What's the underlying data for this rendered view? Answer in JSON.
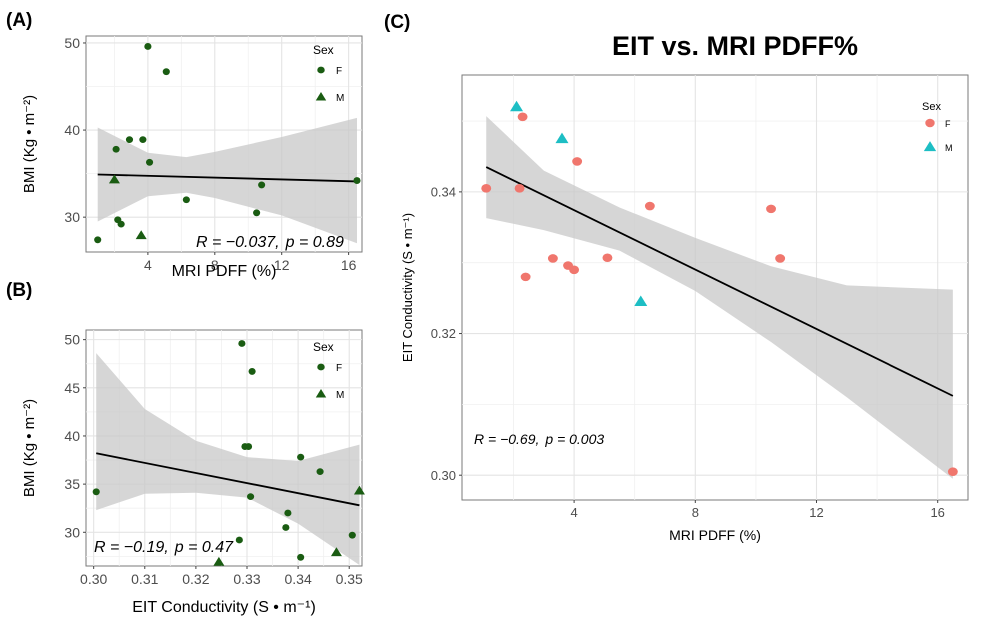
{
  "figure": {
    "panel_labels": {
      "a": "(A)",
      "b": "(B)",
      "c": "(C)"
    }
  },
  "colors": {
    "female_dark": "#1a5c12",
    "female_salmon": "#f0766d",
    "male_teal": "#1dbec4",
    "band": "#c8c8c8",
    "panel_bg": "#ffffff",
    "grid": "#e4e4e4",
    "fit": "#000000"
  },
  "chart_data": [
    {
      "id": "A",
      "type": "scatter",
      "title": "",
      "xlabel": "MRI PDFF (%)",
      "ylabel": "BMI (Kg • m⁻²)",
      "xlim": [
        0.3,
        16.8
      ],
      "ylim": [
        26.0,
        50.8
      ],
      "xticks": [
        4,
        8,
        12,
        16
      ],
      "yticks": [
        30,
        40,
        50
      ],
      "grid": true,
      "legend": {
        "title": "Sex",
        "position": "top-right",
        "entries": [
          "F",
          "M"
        ]
      },
      "annotation": {
        "r": "R = −0.037,",
        "p": "p = 0.89"
      },
      "series": [
        {
          "name": "F",
          "marker": "circle",
          "points": [
            [
              1.0,
              27.4
            ],
            [
              2.1,
              37.8
            ],
            [
              2.2,
              29.7
            ],
            [
              2.4,
              29.2
            ],
            [
              2.9,
              38.9
            ],
            [
              3.7,
              38.9
            ],
            [
              4.0,
              49.6
            ],
            [
              4.1,
              36.3
            ],
            [
              5.1,
              46.7
            ],
            [
              6.3,
              32.0
            ],
            [
              10.5,
              30.5
            ],
            [
              10.8,
              33.7
            ],
            [
              16.5,
              34.2
            ]
          ]
        },
        {
          "name": "M",
          "marker": "triangle",
          "points": [
            [
              2.0,
              34.3
            ],
            [
              3.6,
              27.9
            ]
          ]
        }
      ],
      "fit": {
        "x": [
          1.0,
          16.5
        ],
        "y": [
          34.9,
          34.1
        ]
      },
      "band": {
        "x": [
          1.0,
          4.0,
          6.3,
          8.0,
          12.0,
          16.5
        ],
        "lower": [
          29.5,
          32.4,
          32.8,
          32.2,
          30.2,
          27.0
        ],
        "upper": [
          40.3,
          37.4,
          36.9,
          37.5,
          39.2,
          41.4
        ]
      }
    },
    {
      "id": "B",
      "type": "scatter",
      "title": "",
      "xlabel": "EIT Conductivity (S • m⁻¹)",
      "ylabel": "BMI (Kg • m⁻²)",
      "xlim": [
        0.2985,
        0.3525
      ],
      "ylim": [
        26.5,
        51.0
      ],
      "xticks": [
        0.3,
        0.31,
        0.32,
        0.33,
        0.34,
        0.35
      ],
      "xtick_labels": [
        "0.30",
        "0.31",
        "0.32",
        "0.33",
        "0.34",
        "0.35"
      ],
      "yticks": [
        30,
        35,
        40,
        45,
        50
      ],
      "grid": true,
      "legend": {
        "title": "Sex",
        "position": "top-right",
        "entries": [
          "F",
          "M"
        ]
      },
      "annotation": {
        "r": "R = −0.19,",
        "p": "p = 0.47"
      },
      "series": [
        {
          "name": "F",
          "marker": "circle",
          "points": [
            [
              0.3005,
              34.2
            ],
            [
              0.329,
              49.6
            ],
            [
              0.331,
              46.7
            ],
            [
              0.3296,
              38.9
            ],
            [
              0.3303,
              38.9
            ],
            [
              0.3405,
              37.8
            ],
            [
              0.3443,
              36.3
            ],
            [
              0.338,
              32.0
            ],
            [
              0.3307,
              33.7
            ],
            [
              0.3376,
              30.5
            ],
            [
              0.3506,
              29.7
            ],
            [
              0.3405,
              27.4
            ],
            [
              0.3285,
              29.2
            ]
          ]
        },
        {
          "name": "M",
          "marker": "triangle",
          "points": [
            [
              0.3245,
              26.9
            ],
            [
              0.3475,
              27.9
            ],
            [
              0.352,
              34.3
            ]
          ]
        }
      ],
      "fit": {
        "x": [
          0.3005,
          0.352
        ],
        "y": [
          38.2,
          32.8
        ]
      },
      "band": {
        "x": [
          0.3005,
          0.31,
          0.32,
          0.33,
          0.34,
          0.352
        ],
        "lower": [
          32.3,
          34.0,
          34.1,
          33.6,
          30.9,
          26.6
        ],
        "upper": [
          48.6,
          42.8,
          39.5,
          37.8,
          37.4,
          39.1
        ]
      }
    },
    {
      "id": "C",
      "type": "scatter",
      "title": "EIT vs. MRI PDFF%",
      "xlabel": "MRI PDFF (%)",
      "ylabel": "EIT Conductivity (S • m⁻¹)",
      "xlim": [
        0.3,
        17.0
      ],
      "ylim": [
        0.2965,
        0.3565
      ],
      "xticks": [
        4,
        8,
        12,
        16
      ],
      "yticks": [
        0.3,
        0.32,
        0.34
      ],
      "ytick_labels": [
        "0.30",
        "0.32",
        "0.34"
      ],
      "grid": true,
      "legend": {
        "title": "Sex",
        "position": "top-right",
        "entries": [
          "F",
          "M"
        ]
      },
      "annotation": {
        "r": "R = −0.69,",
        "p": "p = 0.003"
      },
      "series": [
        {
          "name": "F",
          "marker": "circle",
          "points": [
            [
              1.1,
              0.3405
            ],
            [
              2.2,
              0.3405
            ],
            [
              2.3,
              0.3506
            ],
            [
              2.4,
              0.328
            ],
            [
              3.3,
              0.3306
            ],
            [
              3.8,
              0.3296
            ],
            [
              4.0,
              0.329
            ],
            [
              4.1,
              0.3443
            ],
            [
              5.1,
              0.3307
            ],
            [
              6.5,
              0.338
            ],
            [
              10.5,
              0.3376
            ],
            [
              10.8,
              0.3306
            ],
            [
              16.5,
              0.3005
            ]
          ]
        },
        {
          "name": "M",
          "marker": "triangle",
          "points": [
            [
              2.1,
              0.352
            ],
            [
              3.6,
              0.3475
            ],
            [
              6.2,
              0.3245
            ]
          ]
        }
      ],
      "fit": {
        "x": [
          1.1,
          16.5
        ],
        "y": [
          0.3435,
          0.3112
        ]
      },
      "band": {
        "x": [
          1.1,
          3.0,
          5.5,
          8.0,
          10.5,
          13.0,
          16.5
        ],
        "lower": [
          0.3363,
          0.3346,
          0.3317,
          0.326,
          0.3188,
          0.311,
          0.2995
        ],
        "upper": [
          0.3507,
          0.343,
          0.3378,
          0.3335,
          0.3295,
          0.3268,
          0.3262
        ]
      }
    }
  ]
}
